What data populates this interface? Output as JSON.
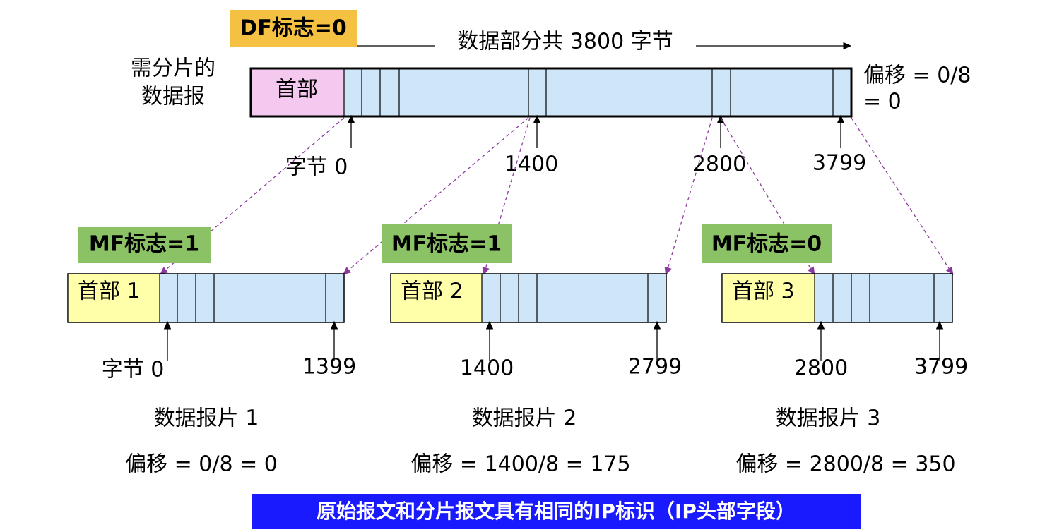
{
  "df_flag": "DF标志=0",
  "data_length_label": "数据部分共 3800 字节",
  "datagram_label": [
    "需分片的",
    "数据报"
  ],
  "header_label": "首部",
  "offset_label": [
    "偏移 = 0/8",
    "= 0"
  ],
  "byte_labels": [
    "字节 0",
    "1400",
    "2800",
    "3799"
  ],
  "fragments": [
    {
      "mf_flag": "MF标志=1",
      "header": "首部 1",
      "start": "字节 0",
      "end": "1399",
      "name": "数据报片 1",
      "offset": "偏移 = 0/8 = 0"
    },
    {
      "mf_flag": "MF标志=1",
      "header": "首部 2",
      "start": "1400",
      "end": "2799",
      "name": "数据报片 2",
      "offset": "偏移 = 1400/8 = 175"
    },
    {
      "mf_flag": "MF标志=0",
      "header": "首部 3",
      "start": "2800",
      "end": "3799",
      "name": "数据报片 3",
      "offset": "偏移 = 2800/8 = 350"
    }
  ],
  "note": "原始报文和分片报文具有相同的IP标识（IP头部字段）"
}
